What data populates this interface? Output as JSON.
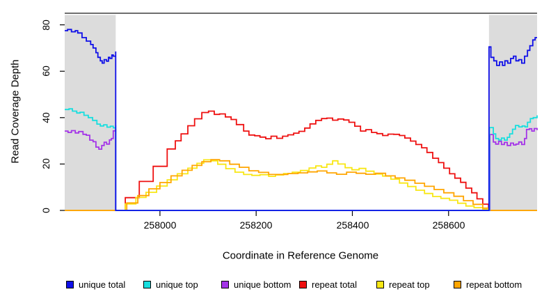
{
  "chart_data": {
    "type": "line",
    "title": "",
    "xlabel": "Coordinate in Reference Genome",
    "ylabel": "Read Coverage Depth",
    "xlim": [
      257802,
      258784
    ],
    "ylim": [
      0,
      85
    ],
    "grid": false,
    "x_ticks": [
      "258000",
      "258200",
      "258400",
      "258600"
    ],
    "x_tick_values": [
      258000,
      258200,
      258400,
      258600
    ],
    "y_ticks": [
      "0",
      "20",
      "40",
      "60",
      "80"
    ],
    "y_tick_values": [
      0,
      20,
      40,
      60,
      80
    ],
    "shaded_regions": [
      {
        "x0": 257802,
        "x1": 257908,
        "color": "#dcdcdc"
      },
      {
        "x0": 258684,
        "x1": 258784,
        "color": "#dcdcdc"
      }
    ],
    "top_border_color": "#3f3f3f",
    "axis_color": "#000000",
    "legend_position": "bottom",
    "legend": [
      {
        "label": "unique total",
        "color": "#0f0fe8"
      },
      {
        "label": "unique top",
        "color": "#18dede"
      },
      {
        "label": "unique bottom",
        "color": "#a434e8"
      },
      {
        "label": "repeat total",
        "color": "#ee1010"
      },
      {
        "label": "repeat top",
        "color": "#f8e715"
      },
      {
        "label": "repeat bottom",
        "color": "#ffa500"
      }
    ],
    "series": [
      {
        "name": "repeat total",
        "color": "#ee1010",
        "points": [
          [
            257802,
            0
          ],
          [
            257908,
            0
          ],
          [
            257928,
            5.5
          ],
          [
            257957,
            12.5
          ],
          [
            257986,
            19
          ],
          [
            258015,
            26.5
          ],
          [
            258032,
            30
          ],
          [
            258044,
            33
          ],
          [
            258058,
            36.5
          ],
          [
            258072,
            39.5
          ],
          [
            258087,
            42.2
          ],
          [
            258101,
            42.8
          ],
          [
            258113,
            41.4
          ],
          [
            258124,
            41.6
          ],
          [
            258136,
            40.3
          ],
          [
            258148,
            39.2
          ],
          [
            258159,
            37
          ],
          [
            258174,
            34.2
          ],
          [
            258185,
            32.5
          ],
          [
            258197,
            32.2
          ],
          [
            258208,
            31.6
          ],
          [
            258220,
            30.9
          ],
          [
            258231,
            32
          ],
          [
            258243,
            31.1
          ],
          [
            258255,
            32
          ],
          [
            258266,
            32.6
          ],
          [
            258278,
            33.3
          ],
          [
            258289,
            34.1
          ],
          [
            258301,
            35.5
          ],
          [
            258312,
            37.3
          ],
          [
            258324,
            38.8
          ],
          [
            258336,
            39.6
          ],
          [
            258347,
            39.8
          ],
          [
            258359,
            38.9
          ],
          [
            258370,
            39.4
          ],
          [
            258382,
            39
          ],
          [
            258393,
            38
          ],
          [
            258405,
            36.3
          ],
          [
            258417,
            34.2
          ],
          [
            258428,
            34.8
          ],
          [
            258440,
            33.6
          ],
          [
            258451,
            33.1
          ],
          [
            258463,
            32.3
          ],
          [
            258474,
            32.9
          ],
          [
            258486,
            32.8
          ],
          [
            258498,
            32.3
          ],
          [
            258509,
            31.2
          ],
          [
            258521,
            29.9
          ],
          [
            258532,
            28.4
          ],
          [
            258544,
            27
          ],
          [
            258555,
            25
          ],
          [
            258567,
            22.5
          ],
          [
            258579,
            20.6
          ],
          [
            258590,
            18.2
          ],
          [
            258602,
            15.8
          ],
          [
            258613,
            13.9
          ],
          [
            258625,
            12.1
          ],
          [
            258636,
            9.6
          ],
          [
            258648,
            7.6
          ],
          [
            258659,
            5
          ],
          [
            258671,
            2.7
          ],
          [
            258683,
            0
          ],
          [
            258784,
            0
          ]
        ]
      },
      {
        "name": "repeat top",
        "color": "#f8e715",
        "points": [
          [
            257802,
            0
          ],
          [
            257908,
            0
          ],
          [
            257928,
            2.8
          ],
          [
            257950,
            5.6
          ],
          [
            257971,
            7.8
          ],
          [
            257993,
            10.5
          ],
          [
            258015,
            13.2
          ],
          [
            258036,
            15.8
          ],
          [
            258058,
            18.2
          ],
          [
            258077,
            20.3
          ],
          [
            258091,
            21.8
          ],
          [
            258106,
            21.4
          ],
          [
            258120,
            19.9
          ],
          [
            258137,
            18
          ],
          [
            258156,
            16.5
          ],
          [
            258174,
            15.5
          ],
          [
            258191,
            15.1
          ],
          [
            258208,
            15.4
          ],
          [
            258226,
            14.7
          ],
          [
            258240,
            15.3
          ],
          [
            258257,
            15.9
          ],
          [
            258275,
            16.5
          ],
          [
            258292,
            17.2
          ],
          [
            258310,
            18.3
          ],
          [
            258324,
            19.2
          ],
          [
            258336,
            18.6
          ],
          [
            258347,
            19.9
          ],
          [
            258359,
            21.4
          ],
          [
            258370,
            20
          ],
          [
            258385,
            18.4
          ],
          [
            258399,
            17.5
          ],
          [
            258414,
            18.1
          ],
          [
            258428,
            16.9
          ],
          [
            258445,
            15.7
          ],
          [
            258463,
            14.8
          ],
          [
            258480,
            13.5
          ],
          [
            258498,
            11.8
          ],
          [
            258515,
            10.3
          ],
          [
            258532,
            8.7
          ],
          [
            258550,
            7.3
          ],
          [
            258567,
            6
          ],
          [
            258584,
            5.2
          ],
          [
            258602,
            4.4
          ],
          [
            258619,
            3.1
          ],
          [
            258636,
            1.9
          ],
          [
            258653,
            1.2
          ],
          [
            258671,
            0.5
          ],
          [
            258683,
            0
          ],
          [
            258784,
            0
          ]
        ]
      },
      {
        "name": "repeat bottom",
        "color": "#ffa500",
        "points": [
          [
            257802,
            0
          ],
          [
            257908,
            0
          ],
          [
            257931,
            3.2
          ],
          [
            257954,
            6.4
          ],
          [
            257977,
            9.3
          ],
          [
            258000,
            12
          ],
          [
            258023,
            14.9
          ],
          [
            258046,
            17.3
          ],
          [
            258067,
            19.4
          ],
          [
            258087,
            21
          ],
          [
            258106,
            21.9
          ],
          [
            258124,
            21.4
          ],
          [
            258145,
            19.9
          ],
          [
            258165,
            18.6
          ],
          [
            258185,
            17.1
          ],
          [
            258205,
            16.4
          ],
          [
            258226,
            15.5
          ],
          [
            258246,
            15.5
          ],
          [
            258266,
            15.9
          ],
          [
            258287,
            16.2
          ],
          [
            258307,
            16.6
          ],
          [
            258327,
            17
          ],
          [
            258347,
            16.2
          ],
          [
            258367,
            15.6
          ],
          [
            258388,
            16.5
          ],
          [
            258408,
            16
          ],
          [
            258428,
            15.6
          ],
          [
            258448,
            16
          ],
          [
            258469,
            14.9
          ],
          [
            258489,
            14
          ],
          [
            258509,
            13
          ],
          [
            258530,
            11.7
          ],
          [
            258550,
            10.4
          ],
          [
            258570,
            9
          ],
          [
            258590,
            7.6
          ],
          [
            258611,
            6.1
          ],
          [
            258631,
            4.2
          ],
          [
            258651,
            2.6
          ],
          [
            258671,
            1
          ],
          [
            258684,
            0
          ],
          [
            258784,
            0
          ]
        ]
      },
      {
        "name": "unique bottom",
        "color": "#a434e8",
        "points": [
          [
            257802,
            34.2
          ],
          [
            257809,
            33.6
          ],
          [
            257816,
            34.4
          ],
          [
            257824,
            33.4
          ],
          [
            257831,
            34
          ],
          [
            257840,
            32.8
          ],
          [
            257847,
            32.4
          ],
          [
            257854,
            30.3
          ],
          [
            257861,
            29.6
          ],
          [
            257867,
            27.3
          ],
          [
            257873,
            26.4
          ],
          [
            257879,
            28
          ],
          [
            257884,
            29.4
          ],
          [
            257889,
            28.6
          ],
          [
            257895,
            30.4
          ],
          [
            257899,
            31
          ],
          [
            257903,
            34.3
          ],
          [
            257908,
            35
          ],
          [
            257908,
            0
          ],
          [
            258686,
            0
          ],
          [
            258686,
            32.7
          ],
          [
            258693,
            29.5
          ],
          [
            258698,
            28.6
          ],
          [
            258704,
            29.8
          ],
          [
            258710,
            28.4
          ],
          [
            258716,
            29.3
          ],
          [
            258722,
            28
          ],
          [
            258729,
            29
          ],
          [
            258735,
            28.2
          ],
          [
            258740,
            28.6
          ],
          [
            258746,
            29.5
          ],
          [
            258752,
            28.4
          ],
          [
            258758,
            31
          ],
          [
            258762,
            34.9
          ],
          [
            258768,
            35.2
          ],
          [
            258773,
            34.2
          ],
          [
            258778,
            35.3
          ],
          [
            258784,
            34.6
          ]
        ]
      },
      {
        "name": "unique top",
        "color": "#18dede",
        "points": [
          [
            257802,
            43.5
          ],
          [
            257811,
            43.8
          ],
          [
            257818,
            42.8
          ],
          [
            257827,
            42
          ],
          [
            257834,
            42.3
          ],
          [
            257842,
            41
          ],
          [
            257851,
            40
          ],
          [
            257860,
            38.8
          ],
          [
            257869,
            37.2
          ],
          [
            257876,
            36.4
          ],
          [
            257883,
            36.9
          ],
          [
            257890,
            35.9
          ],
          [
            257897,
            36.3
          ],
          [
            257903,
            35.6
          ],
          [
            257908,
            36.7
          ],
          [
            257908,
            0
          ],
          [
            258685,
            0
          ],
          [
            258685,
            35.7
          ],
          [
            258693,
            33
          ],
          [
            258698,
            31
          ],
          [
            258704,
            30.4
          ],
          [
            258710,
            31.2
          ],
          [
            258716,
            30.3
          ],
          [
            258722,
            31.5
          ],
          [
            258727,
            33
          ],
          [
            258733,
            35
          ],
          [
            258739,
            36.6
          ],
          [
            258746,
            36
          ],
          [
            258753,
            36.4
          ],
          [
            258759,
            36
          ],
          [
            258764,
            38
          ],
          [
            258770,
            39.6
          ],
          [
            258776,
            40
          ],
          [
            258784,
            41
          ]
        ]
      },
      {
        "name": "unique total",
        "color": "#0f0fe8",
        "points": [
          [
            257802,
            77.5
          ],
          [
            257808,
            78
          ],
          [
            257816,
            77
          ],
          [
            257824,
            77.5
          ],
          [
            257829,
            76.5
          ],
          [
            257838,
            74.5
          ],
          [
            257847,
            73
          ],
          [
            257856,
            71.5
          ],
          [
            257861,
            70
          ],
          [
            257867,
            68
          ],
          [
            257871,
            66
          ],
          [
            257876,
            64.5
          ],
          [
            257880,
            63.5
          ],
          [
            257884,
            65
          ],
          [
            257889,
            64.3
          ],
          [
            257893,
            66
          ],
          [
            257896,
            65.5
          ],
          [
            257900,
            67
          ],
          [
            257903,
            66.5
          ],
          [
            257908,
            68.5
          ],
          [
            257908,
            0
          ],
          [
            258684,
            0
          ],
          [
            258684,
            70.5
          ],
          [
            258688,
            66
          ],
          [
            258694,
            64.5
          ],
          [
            258700,
            62.5
          ],
          [
            258706,
            64
          ],
          [
            258712,
            62.5
          ],
          [
            258717,
            64.5
          ],
          [
            258723,
            63.5
          ],
          [
            258729,
            65.5
          ],
          [
            258735,
            66.5
          ],
          [
            258740,
            64.5
          ],
          [
            258746,
            65
          ],
          [
            258752,
            63.5
          ],
          [
            258758,
            66.5
          ],
          [
            258764,
            69
          ],
          [
            258769,
            71
          ],
          [
            258775,
            73.5
          ],
          [
            258780,
            74.5
          ],
          [
            258784,
            74.5
          ]
        ]
      }
    ]
  }
}
